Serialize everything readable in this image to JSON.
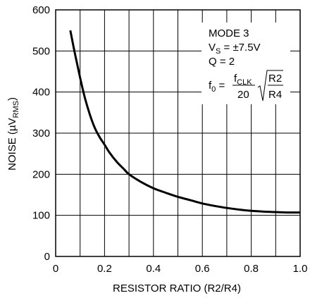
{
  "chart_data": {
    "type": "line",
    "xlabel": "RESISTOR RATIO (R2/R4)",
    "ylabel_main": "NOISE (µV",
    "ylabel_sub": "RMS",
    "ylabel_close": ")",
    "xlim": [
      0,
      1.0
    ],
    "ylim": [
      0,
      600
    ],
    "x_ticks": [
      0,
      0.2,
      0.4,
      0.6,
      0.8,
      1.0
    ],
    "x_tick_labels": [
      "0",
      "0.2",
      "0.4",
      "0.6",
      "0.8",
      "1.0"
    ],
    "y_ticks": [
      0,
      100,
      200,
      300,
      400,
      500,
      600
    ],
    "y_tick_labels": [
      "0",
      "100",
      "200",
      "300",
      "400",
      "500",
      "600"
    ],
    "grid": true,
    "x_minor_grid_step": 0.1,
    "series": [
      {
        "color": "#000000",
        "x": [
          0.06,
          0.08,
          0.1,
          0.12,
          0.14,
          0.16,
          0.18,
          0.2,
          0.22,
          0.25,
          0.28,
          0.3,
          0.35,
          0.4,
          0.45,
          0.5,
          0.55,
          0.6,
          0.65,
          0.7,
          0.75,
          0.8,
          0.85,
          0.9,
          0.95,
          1.0
        ],
        "y": [
          550,
          490,
          435,
          385,
          345,
          313,
          290,
          272,
          253,
          230,
          212,
          200,
          181,
          166,
          155,
          145,
          137,
          129,
          123,
          118,
          114,
          111,
          109,
          108,
          107,
          107
        ]
      }
    ],
    "annotation": {
      "mode": "MODE 3",
      "vs_v": "V",
      "vs_sub": "S",
      "vs_rest": " = ±7.5V",
      "q": "Q = 2",
      "f0_f": "f",
      "f0_sub": "0",
      "f0_eq": " = ",
      "num_f": "f",
      "num_sub": "CLK",
      "den": "20",
      "rad_num": "R2",
      "rad_den": "R4"
    }
  }
}
